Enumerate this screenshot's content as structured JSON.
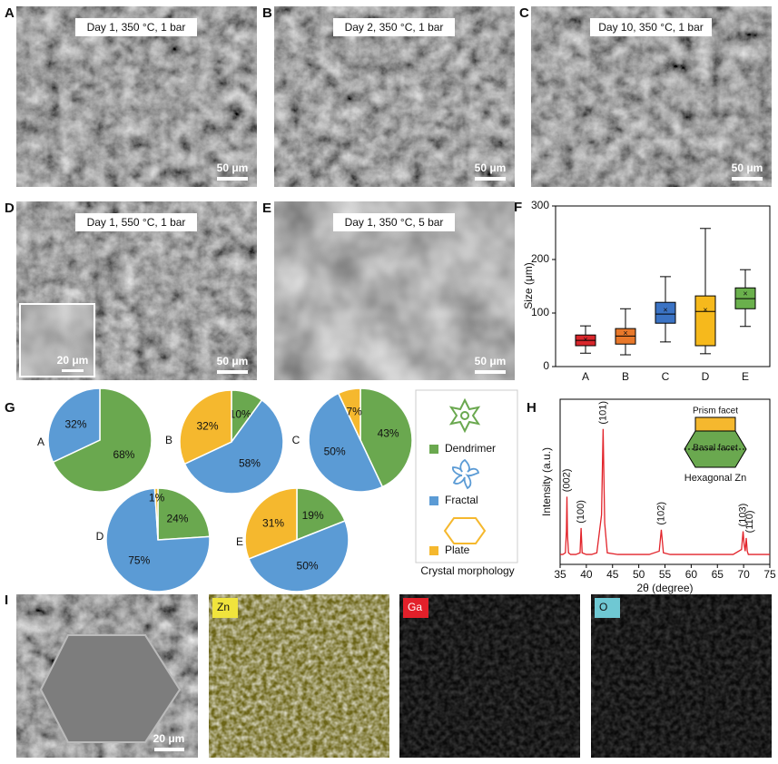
{
  "sem_panels": [
    {
      "panel_label": "A",
      "caption": "Day 1, 350 °C, 1 bar",
      "scale_bar": "50 μm"
    },
    {
      "panel_label": "B",
      "caption": "Day 2, 350 °C, 1 bar",
      "scale_bar": "50 μm"
    },
    {
      "panel_label": "C",
      "caption": "Day 10, 350 °C, 1 bar",
      "scale_bar": "50 μm"
    },
    {
      "panel_label": "D",
      "caption": "Day 1, 550 °C, 1 bar",
      "scale_bar": "50 μm",
      "inset_scale_bar": "20 μm"
    },
    {
      "panel_label": "E",
      "caption": "Day 1, 350 °C, 5 bar",
      "scale_bar": "50 μm"
    }
  ],
  "chart_data": [
    {
      "type": "box",
      "panel_label": "F",
      "y_label": "Size (μm)",
      "categories": [
        "A",
        "B",
        "C",
        "D",
        "E"
      ],
      "ylim": [
        0,
        300
      ],
      "yticks": [
        0,
        100,
        200,
        300
      ],
      "boxes": [
        {
          "color": "#d9262b",
          "whislo": 25,
          "q1": 39,
          "med": 49,
          "q3": 59,
          "whishi": 76,
          "mean": 50
        },
        {
          "color": "#e8782a",
          "whislo": 22,
          "q1": 42,
          "med": 57,
          "q3": 71,
          "whishi": 108,
          "mean": 62
        },
        {
          "color": "#3b73c4",
          "whislo": 46,
          "q1": 81,
          "med": 98,
          "q3": 120,
          "whishi": 168,
          "mean": 105
        },
        {
          "color": "#f6b91c",
          "whislo": 24,
          "q1": 39,
          "med": 103,
          "q3": 132,
          "whishi": 258,
          "mean": 105
        },
        {
          "color": "#6ab04c",
          "whislo": 75,
          "q1": 108,
          "med": 127,
          "q3": 147,
          "whishi": 181,
          "mean": 135
        }
      ]
    },
    {
      "type": "pie",
      "panel_label": "G",
      "legend_title": "Crystal morphology",
      "categories": [
        "A",
        "B",
        "C",
        "D",
        "E"
      ],
      "series": [
        {
          "name": "Dendrimer",
          "color": "#6aa84f",
          "values": [
            68,
            10,
            43,
            24,
            19
          ],
          "value_labels": [
            "68%",
            "10%",
            "43%",
            "24%",
            "19%"
          ]
        },
        {
          "name": "Fractal",
          "color": "#5b9bd5",
          "values": [
            32,
            58,
            50,
            75,
            50
          ],
          "value_labels": [
            "32%",
            "58%",
            "50%",
            "75%",
            "50%"
          ]
        },
        {
          "name": "Plate",
          "color": "#f5b82e",
          "values": [
            null,
            32,
            7,
            1,
            31
          ],
          "value_labels": [
            null,
            "32%",
            "7%",
            "1%",
            "31%"
          ]
        }
      ]
    },
    {
      "type": "line",
      "panel_label": "H",
      "x_label": "2θ (degree)",
      "y_label": "Intensity (a.u.)",
      "color": "#e2232a",
      "xlim": [
        35,
        75
      ],
      "xticks": [
        35,
        40,
        45,
        50,
        55,
        60,
        65,
        70,
        75
      ],
      "ylim": [
        0,
        100
      ],
      "x": [
        35,
        35.5,
        36,
        36.2,
        36.3,
        36.4,
        36.6,
        37,
        38,
        38.8,
        39,
        39.2,
        40,
        41,
        42,
        42.9,
        43.2,
        43.5,
        44,
        46,
        48,
        50,
        52,
        53.9,
        54.3,
        54.7,
        56,
        58,
        60,
        62,
        64,
        66,
        68,
        69.6,
        69.9,
        70.1,
        70.3,
        70.5,
        70.7,
        70.9,
        71.5,
        73,
        75
      ],
      "values": [
        6,
        6,
        7,
        20,
        41,
        18,
        7,
        6,
        6,
        7,
        22,
        7,
        6,
        6,
        7,
        30,
        82,
        25,
        7,
        6,
        6,
        6,
        6,
        8,
        21,
        7,
        6,
        6,
        6,
        6,
        6,
        6,
        6,
        9,
        20,
        12,
        8,
        16,
        8,
        6,
        6,
        6,
        6
      ],
      "annotations": [
        {
          "text": "(002)",
          "x": 36.3,
          "y": 41
        },
        {
          "text": "(100)",
          "x": 39,
          "y": 22
        },
        {
          "text": "(101)",
          "x": 43.2,
          "y": 82
        },
        {
          "text": "(102)",
          "x": 54.3,
          "y": 21
        },
        {
          "text": "(103)",
          "x": 69.9,
          "y": 20
        },
        {
          "text": "(110)",
          "x": 70.5,
          "y": 16
        }
      ],
      "inset": {
        "prism": "Prism facet",
        "basal": "Basal facet",
        "caption": "Hexagonal Zn"
      }
    }
  ],
  "eds": {
    "panel_label": "I",
    "scale_bar": "20 μm",
    "maps": [
      {
        "element": "Zn",
        "color": "#f0e43c"
      },
      {
        "element": "Ga",
        "color": "#e3202a"
      },
      {
        "element": "O",
        "color": "#6fc8d3"
      }
    ]
  }
}
